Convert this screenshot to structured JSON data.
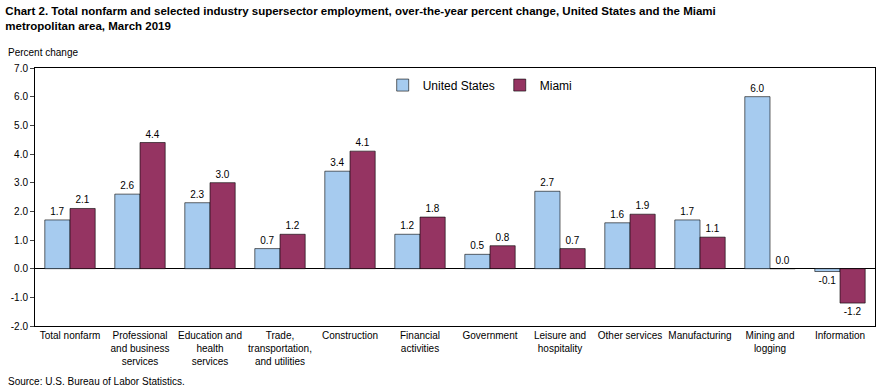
{
  "chart_data": {
    "type": "bar",
    "title": "Chart 2. Total nonfarm and selected industry  supersector  employment, over-the-year percent change, United States and the Miami metropolitan area, March 2019",
    "ylabel": "Percent change",
    "note": "Source: U.S. Bureau of Labor Statistics.",
    "categories": [
      "Total nonfarm",
      "Professional and business services",
      "Education and health services",
      "Trade, transportation, and utilities",
      "Construction",
      "Financial activities",
      "Government",
      "Leisure and hospitality",
      "Other services",
      "Manufacturing",
      "Mining and logging",
      "Information"
    ],
    "series": [
      {
        "name": "United States",
        "color": "#a6cbef",
        "values": [
          1.7,
          2.6,
          2.3,
          0.7,
          3.4,
          1.2,
          0.5,
          2.7,
          1.6,
          1.7,
          6.0,
          -0.1
        ],
        "value_labels": [
          "1.7",
          "2.6",
          "2.3",
          "0.7",
          "3.4",
          "1.2",
          "0.5",
          "2.7",
          "1.6",
          "1.7",
          "6.0",
          "-0.1"
        ]
      },
      {
        "name": "Miami",
        "color": "#953462",
        "values": [
          2.1,
          4.4,
          3.0,
          1.2,
          4.1,
          1.8,
          0.8,
          0.7,
          1.9,
          1.1,
          0.0,
          -1.2
        ],
        "value_labels": [
          "2.1",
          "4.4",
          "3.0",
          "1.2",
          "4.1",
          "1.8",
          "0.8",
          "0.7",
          "1.9",
          "1.1",
          "0.0",
          "-1.2"
        ]
      }
    ],
    "ylim": [
      -2,
      7
    ],
    "yticks": [
      {
        "value": -2,
        "label": "-2.0"
      },
      {
        "value": -1,
        "label": "-1.0"
      },
      {
        "value": 0,
        "label": "0.0"
      },
      {
        "value": 1,
        "label": "1.0"
      },
      {
        "value": 2,
        "label": "2.0"
      },
      {
        "value": 3,
        "label": "3.0"
      },
      {
        "value": 4,
        "label": "4.0"
      },
      {
        "value": 5,
        "label": "5.0"
      },
      {
        "value": 6,
        "label": "6.0"
      },
      {
        "value": 7,
        "label": "7.0"
      }
    ],
    "grid": false,
    "legend": "top",
    "data_labels": true
  }
}
